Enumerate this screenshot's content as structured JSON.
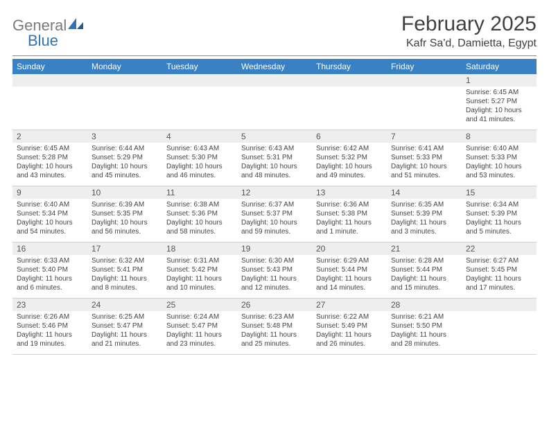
{
  "brand": {
    "general": "General",
    "blue": "Blue",
    "accent_color": "#2e74b5",
    "gray_color": "#7a7a7a"
  },
  "title": "February 2025",
  "location": "Kafr Sa'd, Damietta, Egypt",
  "header_bg": "#3a81c3",
  "daynum_bg": "#eeeeee",
  "weekdays": [
    "Sunday",
    "Monday",
    "Tuesday",
    "Wednesday",
    "Thursday",
    "Friday",
    "Saturday"
  ],
  "weeks": [
    {
      "nums": [
        "",
        "",
        "",
        "",
        "",
        "",
        "1"
      ],
      "cells": [
        null,
        null,
        null,
        null,
        null,
        null,
        {
          "sunrise": "Sunrise: 6:45 AM",
          "sunset": "Sunset: 5:27 PM",
          "daylight": "Daylight: 10 hours and 41 minutes."
        }
      ]
    },
    {
      "nums": [
        "2",
        "3",
        "4",
        "5",
        "6",
        "7",
        "8"
      ],
      "cells": [
        {
          "sunrise": "Sunrise: 6:45 AM",
          "sunset": "Sunset: 5:28 PM",
          "daylight": "Daylight: 10 hours and 43 minutes."
        },
        {
          "sunrise": "Sunrise: 6:44 AM",
          "sunset": "Sunset: 5:29 PM",
          "daylight": "Daylight: 10 hours and 45 minutes."
        },
        {
          "sunrise": "Sunrise: 6:43 AM",
          "sunset": "Sunset: 5:30 PM",
          "daylight": "Daylight: 10 hours and 46 minutes."
        },
        {
          "sunrise": "Sunrise: 6:43 AM",
          "sunset": "Sunset: 5:31 PM",
          "daylight": "Daylight: 10 hours and 48 minutes."
        },
        {
          "sunrise": "Sunrise: 6:42 AM",
          "sunset": "Sunset: 5:32 PM",
          "daylight": "Daylight: 10 hours and 49 minutes."
        },
        {
          "sunrise": "Sunrise: 6:41 AM",
          "sunset": "Sunset: 5:33 PM",
          "daylight": "Daylight: 10 hours and 51 minutes."
        },
        {
          "sunrise": "Sunrise: 6:40 AM",
          "sunset": "Sunset: 5:33 PM",
          "daylight": "Daylight: 10 hours and 53 minutes."
        }
      ]
    },
    {
      "nums": [
        "9",
        "10",
        "11",
        "12",
        "13",
        "14",
        "15"
      ],
      "cells": [
        {
          "sunrise": "Sunrise: 6:40 AM",
          "sunset": "Sunset: 5:34 PM",
          "daylight": "Daylight: 10 hours and 54 minutes."
        },
        {
          "sunrise": "Sunrise: 6:39 AM",
          "sunset": "Sunset: 5:35 PM",
          "daylight": "Daylight: 10 hours and 56 minutes."
        },
        {
          "sunrise": "Sunrise: 6:38 AM",
          "sunset": "Sunset: 5:36 PM",
          "daylight": "Daylight: 10 hours and 58 minutes."
        },
        {
          "sunrise": "Sunrise: 6:37 AM",
          "sunset": "Sunset: 5:37 PM",
          "daylight": "Daylight: 10 hours and 59 minutes."
        },
        {
          "sunrise": "Sunrise: 6:36 AM",
          "sunset": "Sunset: 5:38 PM",
          "daylight": "Daylight: 11 hours and 1 minute."
        },
        {
          "sunrise": "Sunrise: 6:35 AM",
          "sunset": "Sunset: 5:39 PM",
          "daylight": "Daylight: 11 hours and 3 minutes."
        },
        {
          "sunrise": "Sunrise: 6:34 AM",
          "sunset": "Sunset: 5:39 PM",
          "daylight": "Daylight: 11 hours and 5 minutes."
        }
      ]
    },
    {
      "nums": [
        "16",
        "17",
        "18",
        "19",
        "20",
        "21",
        "22"
      ],
      "cells": [
        {
          "sunrise": "Sunrise: 6:33 AM",
          "sunset": "Sunset: 5:40 PM",
          "daylight": "Daylight: 11 hours and 6 minutes."
        },
        {
          "sunrise": "Sunrise: 6:32 AM",
          "sunset": "Sunset: 5:41 PM",
          "daylight": "Daylight: 11 hours and 8 minutes."
        },
        {
          "sunrise": "Sunrise: 6:31 AM",
          "sunset": "Sunset: 5:42 PM",
          "daylight": "Daylight: 11 hours and 10 minutes."
        },
        {
          "sunrise": "Sunrise: 6:30 AM",
          "sunset": "Sunset: 5:43 PM",
          "daylight": "Daylight: 11 hours and 12 minutes."
        },
        {
          "sunrise": "Sunrise: 6:29 AM",
          "sunset": "Sunset: 5:44 PM",
          "daylight": "Daylight: 11 hours and 14 minutes."
        },
        {
          "sunrise": "Sunrise: 6:28 AM",
          "sunset": "Sunset: 5:44 PM",
          "daylight": "Daylight: 11 hours and 15 minutes."
        },
        {
          "sunrise": "Sunrise: 6:27 AM",
          "sunset": "Sunset: 5:45 PM",
          "daylight": "Daylight: 11 hours and 17 minutes."
        }
      ]
    },
    {
      "nums": [
        "23",
        "24",
        "25",
        "26",
        "27",
        "28",
        ""
      ],
      "cells": [
        {
          "sunrise": "Sunrise: 6:26 AM",
          "sunset": "Sunset: 5:46 PM",
          "daylight": "Daylight: 11 hours and 19 minutes."
        },
        {
          "sunrise": "Sunrise: 6:25 AM",
          "sunset": "Sunset: 5:47 PM",
          "daylight": "Daylight: 11 hours and 21 minutes."
        },
        {
          "sunrise": "Sunrise: 6:24 AM",
          "sunset": "Sunset: 5:47 PM",
          "daylight": "Daylight: 11 hours and 23 minutes."
        },
        {
          "sunrise": "Sunrise: 6:23 AM",
          "sunset": "Sunset: 5:48 PM",
          "daylight": "Daylight: 11 hours and 25 minutes."
        },
        {
          "sunrise": "Sunrise: 6:22 AM",
          "sunset": "Sunset: 5:49 PM",
          "daylight": "Daylight: 11 hours and 26 minutes."
        },
        {
          "sunrise": "Sunrise: 6:21 AM",
          "sunset": "Sunset: 5:50 PM",
          "daylight": "Daylight: 11 hours and 28 minutes."
        },
        null
      ]
    }
  ]
}
